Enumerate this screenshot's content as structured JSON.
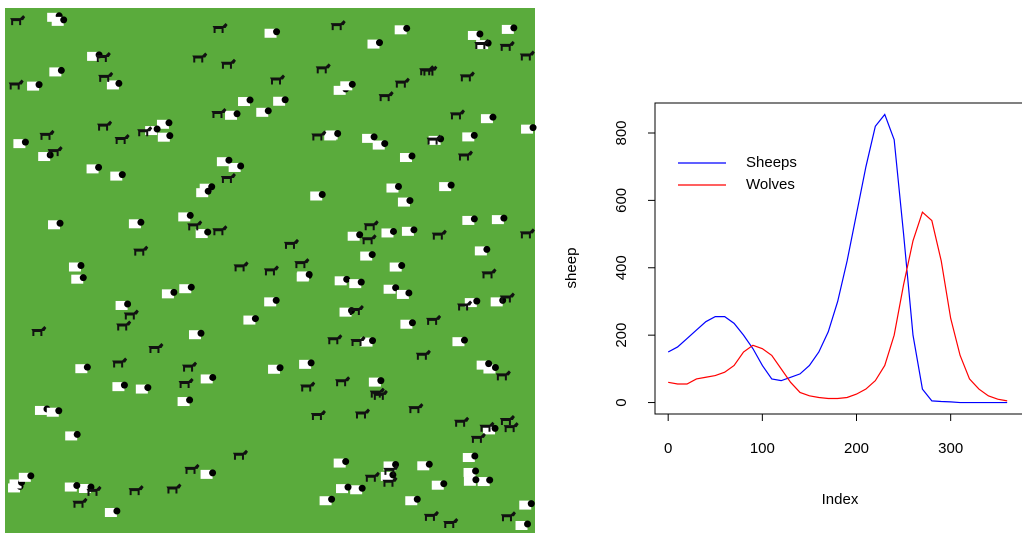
{
  "chart_data": {
    "type": "line",
    "xlabel": "Index",
    "ylabel": "sheep",
    "x": [
      0,
      10,
      20,
      30,
      40,
      50,
      60,
      70,
      80,
      90,
      100,
      110,
      120,
      130,
      140,
      150,
      160,
      170,
      180,
      190,
      200,
      210,
      220,
      230,
      240,
      250,
      260,
      270,
      280,
      290,
      300,
      310,
      320,
      330,
      340,
      350,
      360
    ],
    "series": [
      {
        "name": "Sheeps",
        "color": "#0000ff",
        "values": [
          150,
          165,
          190,
          215,
          240,
          255,
          255,
          235,
          200,
          160,
          110,
          70,
          65,
          75,
          85,
          110,
          150,
          210,
          300,
          420,
          560,
          700,
          820,
          855,
          780,
          500,
          200,
          40,
          5,
          3,
          2,
          0,
          0,
          0,
          0,
          0,
          0
        ]
      },
      {
        "name": "Wolves",
        "color": "#ff0000",
        "values": [
          60,
          55,
          55,
          70,
          75,
          80,
          90,
          110,
          150,
          170,
          160,
          140,
          100,
          60,
          30,
          20,
          15,
          12,
          12,
          15,
          25,
          40,
          65,
          110,
          200,
          350,
          480,
          565,
          540,
          420,
          250,
          140,
          70,
          40,
          20,
          10,
          5
        ]
      }
    ],
    "xlim": [
      -14,
      380
    ],
    "ylim": [
      -34,
      889
    ],
    "xticks": [
      0,
      100,
      200,
      300
    ],
    "yticks": [
      0,
      200,
      400,
      600,
      800
    ],
    "legend": "top-left"
  }
}
